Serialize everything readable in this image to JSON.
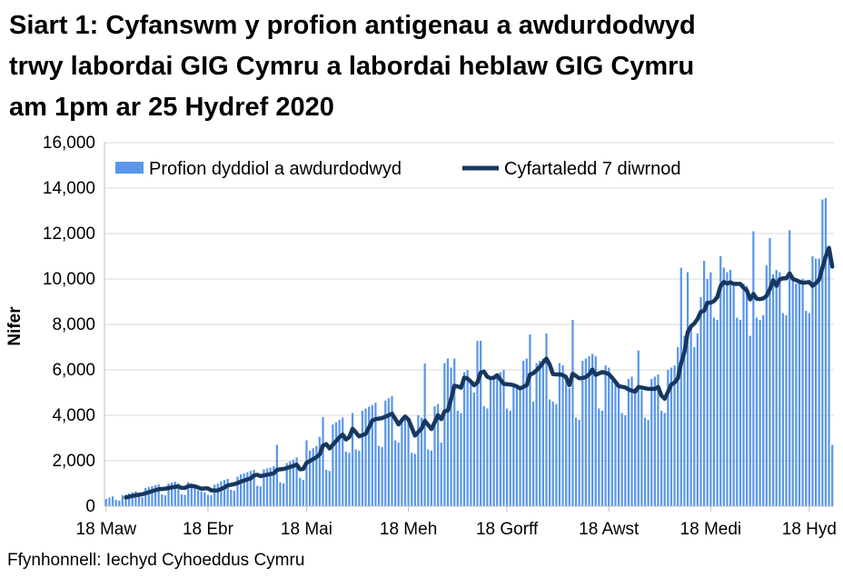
{
  "title_lines": [
    "Siart 1: Cyfanswm y profion antigenau a awdurdodwyd",
    "trwy labordai GIG Cymru a labordai heblaw GIG Cymru",
    "am 1pm ar 25 Hydref 2020"
  ],
  "source": "Ffynhonnell: Iechyd Cyhoeddus Cymru",
  "legend": {
    "bars_label": "Profion dyddiol a awdurdodwyd",
    "line_label": "Cyfartaledd 7 diwrnod"
  },
  "colors": {
    "bar": "#5996EB",
    "line": "#17375E",
    "grid": "#D9D9D9",
    "axis": "#BFBFBF",
    "text": "#000000"
  },
  "chart_data": {
    "type": "bar",
    "title": "Siart 1: Cyfanswm y profion antigenau a awdurdodwyd trwy labordai GIG Cymru a labordai heblaw GIG Cymru am 1pm ar 25 Hydref 2020",
    "xlabel": "",
    "ylabel": "Nifer",
    "ylim": [
      0,
      16000
    ],
    "y_tick_step": 2000,
    "y_tick_labels": [
      "0",
      "2,000",
      "4,000",
      "6,000",
      "8,000",
      "10,000",
      "12,000",
      "14,000",
      "16,000"
    ],
    "grid": "horizontal",
    "legend_position": "top-left-inside",
    "start_date": "2020-03-18",
    "end_date": "2020-10-25",
    "x_ticks": [
      {
        "label": "18 Maw",
        "index": 0
      },
      {
        "label": "18 Ebr",
        "index": 31
      },
      {
        "label": "18 Mai",
        "index": 61
      },
      {
        "label": "18 Meh",
        "index": 92
      },
      {
        "label": "18 Gorff",
        "index": 122
      },
      {
        "label": "18 Awst",
        "index": 153
      },
      {
        "label": "18 Medi",
        "index": 184
      },
      {
        "label": "18 Hyd",
        "index": 214
      }
    ],
    "series": [
      {
        "name": "Profion dyddiol a awdurdodwyd",
        "type": "bar",
        "values": [
          320,
          380,
          430,
          280,
          250,
          480,
          520,
          570,
          620,
          660,
          420,
          400,
          800,
          850,
          880,
          920,
          960,
          520,
          480,
          1000,
          1040,
          1080,
          1010,
          520,
          500,
          1060,
          1010,
          960,
          700,
          650,
          600,
          500,
          480,
          950,
          1000,
          1100,
          1150,
          1200,
          720,
          680,
          1300,
          1400,
          1450,
          1500,
          1550,
          1600,
          900,
          870,
          1620,
          1660,
          1700,
          1760,
          2700,
          1050,
          1000,
          1900,
          1980,
          2050,
          2150,
          1250,
          1150,
          2900,
          2450,
          2550,
          2650,
          3050,
          3920,
          1600,
          1550,
          3600,
          3700,
          3800,
          3900,
          2400,
          2350,
          4100,
          2500,
          2450,
          4200,
          4300,
          4380,
          4450,
          4550,
          2650,
          2600,
          4650,
          4750,
          4850,
          2900,
          2800,
          3900,
          3800,
          3700,
          2350,
          2300,
          4000,
          3900,
          6280,
          2500,
          2450,
          4400,
          4500,
          2800,
          6300,
          6500,
          6100,
          6500,
          4200,
          4100,
          5900,
          6000,
          5600,
          5000,
          7280,
          7280,
          4400,
          4300,
          5600,
          5700,
          5800,
          5900,
          6000,
          4300,
          4200,
          5400,
          5300,
          5200,
          6400,
          6500,
          7560,
          4600,
          6300,
          6400,
          6500,
          7600,
          4700,
          4600,
          4500,
          6300,
          6200,
          5800,
          5200,
          8200,
          3900,
          3800,
          6400,
          6500,
          6600,
          6700,
          6600,
          4300,
          4200,
          6200,
          6100,
          5500,
          5400,
          5300,
          4100,
          4000,
          5600,
          5700,
          5200,
          6850,
          5100,
          3900,
          3800,
          5600,
          5700,
          5800,
          4200,
          4100,
          6000,
          6100,
          6200,
          7000,
          10500,
          7500,
          10300,
          7800,
          7000,
          7600,
          9200,
          10800,
          10000,
          10300,
          8300,
          8200,
          11000,
          10500,
          10300,
          10400,
          9800,
          8300,
          8200,
          9800,
          9700,
          7500,
          12100,
          8300,
          8200,
          8400,
          10600,
          11800,
          10200,
          10400,
          10300,
          8500,
          8400,
          12150,
          10100,
          9800,
          9900,
          10000,
          8600,
          8500,
          11000,
          10900,
          10900,
          13500,
          13560,
          11250,
          2700
        ]
      },
      {
        "name": "Cyfartaledd 7 diwrnod",
        "type": "line",
        "derived": "rolling_mean_7_of_bar_series"
      }
    ]
  }
}
